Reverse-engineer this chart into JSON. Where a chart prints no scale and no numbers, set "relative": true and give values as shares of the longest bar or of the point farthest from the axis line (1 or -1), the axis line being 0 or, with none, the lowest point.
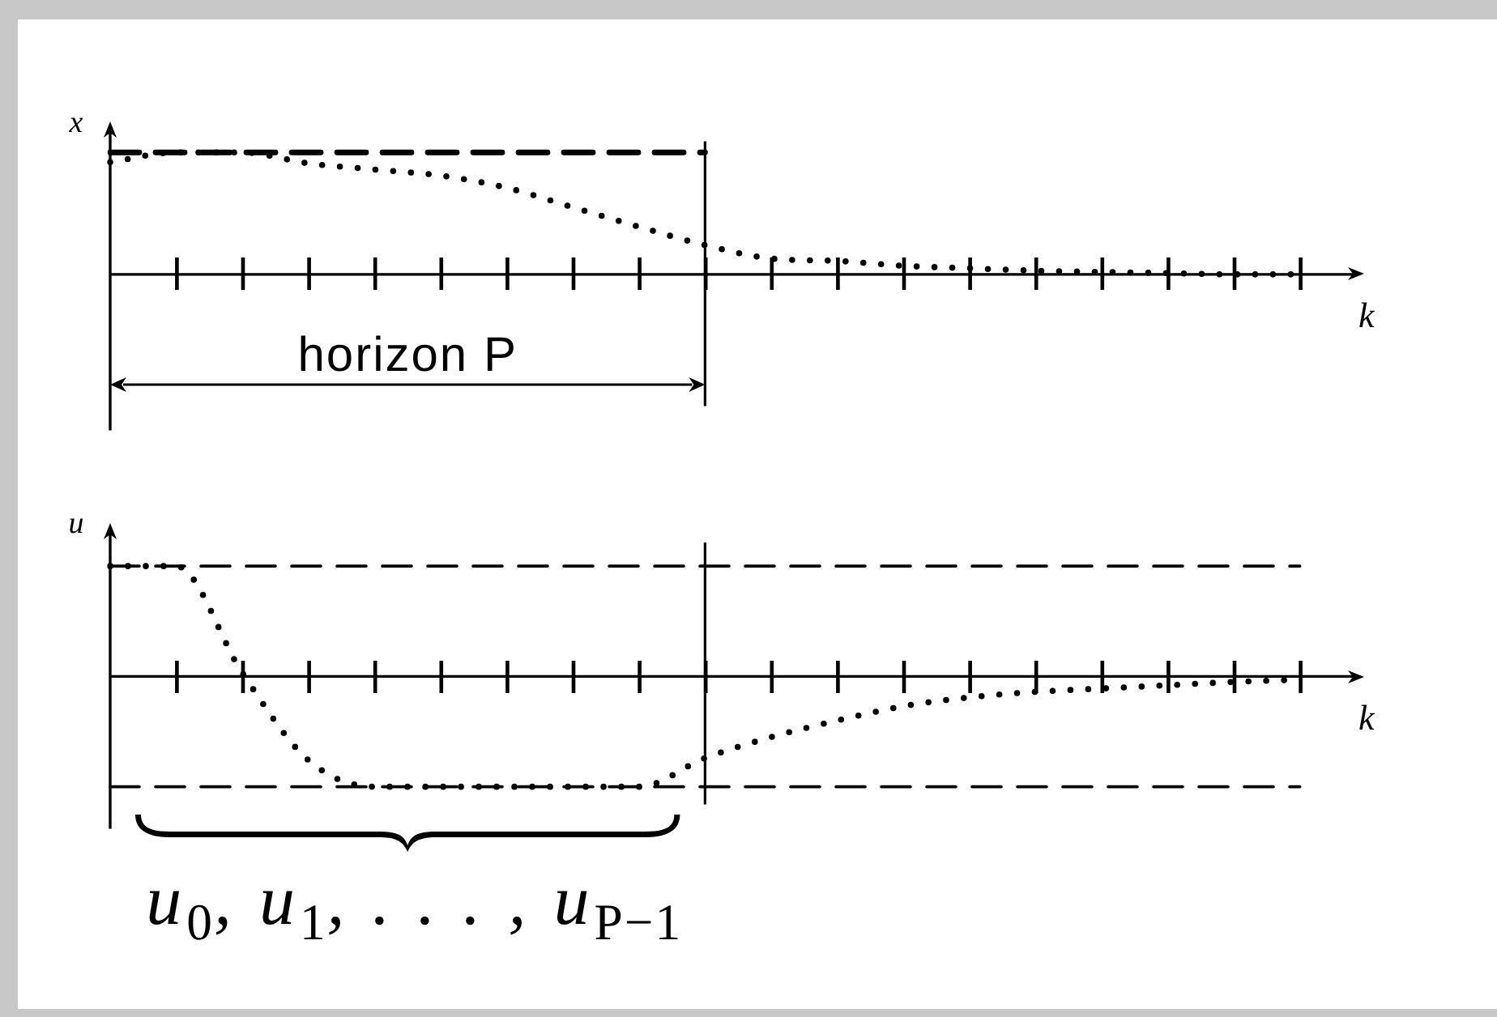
{
  "chart_data": [
    {
      "type": "line",
      "relative": true,
      "xlabel": "k",
      "ylabel": "x",
      "categories": [
        null,
        null,
        null,
        null,
        null,
        null,
        null,
        null,
        null,
        null,
        null,
        null,
        null,
        null,
        null,
        null,
        null,
        null,
        null
      ],
      "marker": "none",
      "series": [
        {
          "color": "#000000",
          "line_style": "dotted",
          "values": [
            0.92,
            1,
            1,
            0.91,
            0.86,
            0.81,
            0.71,
            0.55,
            0.39,
            0.24,
            0.13,
            0.11,
            0.07,
            0.05,
            0.03,
            0.02,
            0.01,
            0,
            0
          ]
        },
        {
          "color": "#000000",
          "line_style": "dashed",
          "values": [
            1,
            1,
            1,
            1,
            1,
            1,
            1,
            1,
            1,
            1,
            null,
            null,
            null,
            null,
            null,
            null,
            null,
            null,
            null
          ]
        }
      ],
      "annotations": [
        "horizon P"
      ]
    },
    {
      "type": "line",
      "relative": true,
      "xlabel": "k",
      "ylabel": "u",
      "categories": [
        null,
        null,
        null,
        null,
        null,
        null,
        null,
        null,
        null,
        null,
        null,
        null,
        null,
        null,
        null,
        null,
        null,
        null,
        null
      ],
      "marker": "none",
      "series": [
        {
          "color": "#000000",
          "line_style": "dotted",
          "values": [
            1,
            1,
            0.03,
            -0.76,
            -1,
            -1,
            -1,
            -1,
            -1,
            -0.74,
            -0.55,
            -0.4,
            -0.27,
            -0.19,
            -0.14,
            -0.11,
            -0.08,
            -0.05,
            -0.03
          ]
        },
        {
          "color": "#000000",
          "line_style": "dashed",
          "values": [
            1,
            1,
            1,
            1,
            1,
            1,
            1,
            1,
            1,
            1,
            1,
            1,
            1,
            1,
            1,
            1,
            1,
            1,
            1
          ]
        },
        {
          "color": "#000000",
          "line_style": "dashed",
          "values": [
            -1,
            -1,
            -1,
            -1,
            -1,
            -1,
            -1,
            -1,
            -1,
            -1,
            -1,
            -1,
            -1,
            -1,
            -1,
            -1,
            -1,
            -1,
            -1
          ]
        }
      ],
      "annotations": [
        "u$_{0}$, u$_{1}$, . . . , u$_{P−1}$"
      ]
    }
  ]
}
